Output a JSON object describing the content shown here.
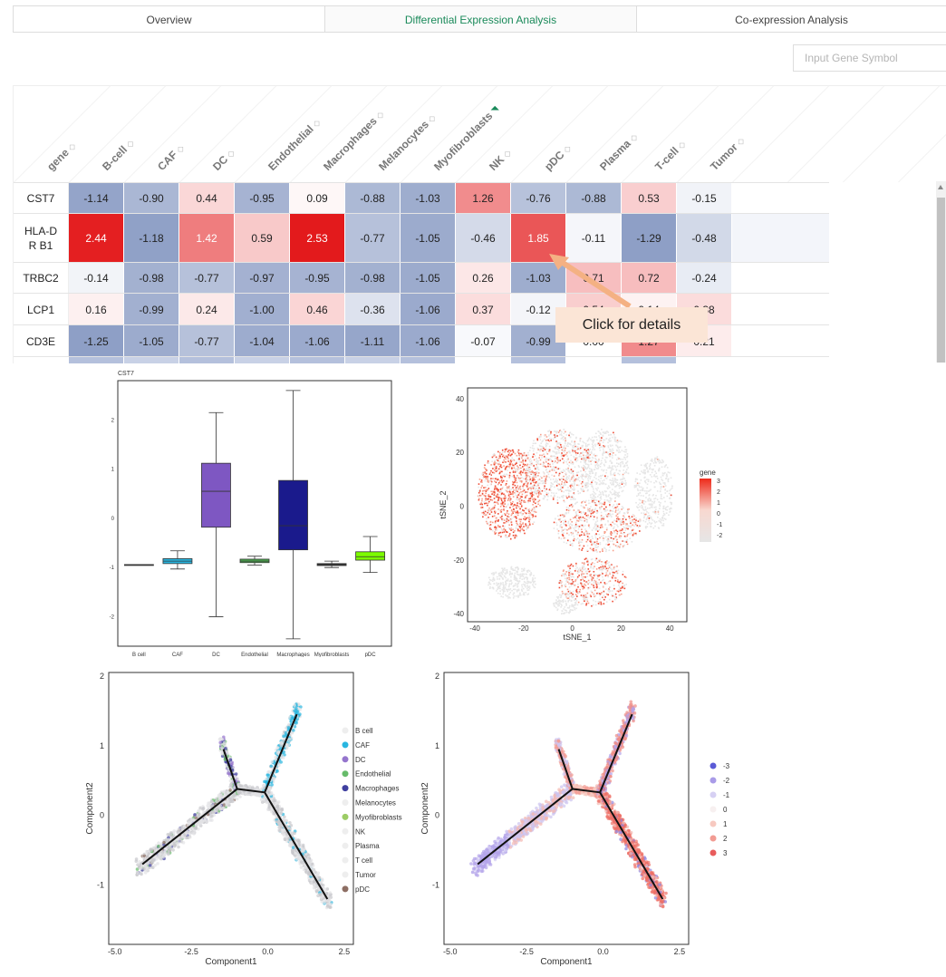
{
  "tabs": [
    {
      "label": "Overview",
      "active": false
    },
    {
      "label": "Differential Expression Analysis",
      "active": true
    },
    {
      "label": "Co-expression Analysis",
      "active": false
    }
  ],
  "search": {
    "placeholder": "Input Gene Symbol"
  },
  "table": {
    "columns": [
      "gene",
      "B-cell",
      "CAF",
      "DC",
      "Endothelial",
      "Macrophages",
      "Melanocytes",
      "Myofibroblasts",
      "NK",
      "pDC",
      "Plasma",
      "T-cell",
      "Tumor"
    ],
    "rows": [
      {
        "gene": "CST7",
        "values": [
          "-1.14",
          "-0.90",
          "0.44",
          "-0.95",
          "0.09",
          "-0.88",
          "-1.03",
          "1.26",
          "-0.76",
          "-0.88",
          "0.53",
          "-0.15"
        ]
      },
      {
        "gene": "HLA-DR B1",
        "values": [
          "2.44",
          "-1.18",
          "1.42",
          "0.59",
          "2.53",
          "-0.77",
          "-1.05",
          "-0.46",
          "1.85",
          "-0.11",
          "-1.29",
          "-0.48"
        ]
      },
      {
        "gene": "TRBC2",
        "values": [
          "-0.14",
          "-0.98",
          "-0.77",
          "-0.97",
          "-0.95",
          "-0.98",
          "-1.05",
          "0.26",
          "-1.03",
          "0.71",
          "0.72",
          "-0.24"
        ]
      },
      {
        "gene": "LCP1",
        "values": [
          "0.16",
          "-0.99",
          "0.24",
          "-1.00",
          "0.46",
          "-0.36",
          "-1.06",
          "0.37",
          "-0.12",
          "0.54",
          "0.14",
          "0.38"
        ]
      },
      {
        "gene": "CD3E",
        "values": [
          "-1.25",
          "-1.05",
          "-0.77",
          "-1.04",
          "-1.06",
          "-1.11",
          "-1.06",
          "-0.07",
          "-0.99",
          "0.00",
          "1.27",
          "0.21"
        ]
      }
    ]
  },
  "callout": {
    "text": "Click for details"
  },
  "colors": {
    "negative": "#8e9fc6",
    "positive": "#e31a1c",
    "accent": "#1a8a5a",
    "callout_bg": "#fbe5d6",
    "arrow": "#f4b183"
  },
  "chart_data": [
    {
      "type": "boxplot",
      "title": "CST7",
      "categories": [
        "B cell",
        "CAF",
        "DC",
        "Endothelial",
        "Macrophages",
        "Myofibroblasts",
        "pDC"
      ],
      "colors": [
        "#444444",
        "#29b6e0",
        "#7e57c2",
        "#4caf50",
        "#1a1a8c",
        "#333333",
        "#7cfc00"
      ],
      "boxes": [
        {
          "min": -0.94,
          "q1": -0.94,
          "median": -0.94,
          "q3": -0.94,
          "max": -0.94
        },
        {
          "min": -1.03,
          "q1": -0.92,
          "median": -0.87,
          "q3": -0.82,
          "max": -0.66
        },
        {
          "min": -2.0,
          "q1": -0.18,
          "median": 0.55,
          "q3": 1.12,
          "max": 2.15
        },
        {
          "min": -0.95,
          "q1": -0.9,
          "median": -0.87,
          "q3": -0.83,
          "max": -0.77
        },
        {
          "min": -2.45,
          "q1": -0.64,
          "median": -0.15,
          "q3": 0.77,
          "max": 2.6
        },
        {
          "min": -1.0,
          "q1": -0.96,
          "median": -0.94,
          "q3": -0.92,
          "max": -0.87
        },
        {
          "min": -1.1,
          "q1": -0.85,
          "median": -0.78,
          "q3": -0.68,
          "max": -0.37
        }
      ],
      "yticks": [
        -2,
        -1,
        0,
        1,
        2
      ],
      "ylim": [
        -2.6,
        2.8
      ]
    },
    {
      "type": "scatter",
      "xlabel": "tSNE_1",
      "ylabel": "tSNE_2",
      "xlim": [
        -43,
        47
      ],
      "ylim": [
        -43,
        44
      ],
      "xticks": [
        -40,
        -20,
        0,
        20,
        40
      ],
      "yticks": [
        -40,
        -20,
        0,
        20,
        40
      ],
      "legend": {
        "title": "gene",
        "ticks": [
          "3",
          "2",
          "1",
          "0",
          "-1",
          "-2"
        ]
      }
    },
    {
      "type": "scatter",
      "xlabel": "Component1",
      "ylabel": "Component2",
      "xlim": [
        -5.2,
        2.8
      ],
      "ylim": [
        -1.85,
        2.05
      ],
      "xticks": [
        -5.0,
        -2.5,
        0.0,
        2.5
      ],
      "yticks": [
        -1,
        0,
        1,
        2
      ],
      "legend": [
        {
          "name": "B cell",
          "color": "#eeeeee"
        },
        {
          "name": "CAF",
          "color": "#29b6e0"
        },
        {
          "name": "DC",
          "color": "#9575cd"
        },
        {
          "name": "Endothelial",
          "color": "#66bb6a"
        },
        {
          "name": "Macrophages",
          "color": "#3f3f9f"
        },
        {
          "name": "Melanocytes",
          "color": "#eeeeee"
        },
        {
          "name": "Myofibroblasts",
          "color": "#9ccc65"
        },
        {
          "name": "NK",
          "color": "#eeeeee"
        },
        {
          "name": "Plasma",
          "color": "#eeeeee"
        },
        {
          "name": "T cell",
          "color": "#eeeeee"
        },
        {
          "name": "Tumor",
          "color": "#eeeeee"
        },
        {
          "name": "pDC",
          "color": "#8d6e63"
        }
      ]
    },
    {
      "type": "scatter",
      "xlabel": "Component1",
      "ylabel": "Component2",
      "xlim": [
        -5.2,
        2.8
      ],
      "ylim": [
        -1.85,
        2.05
      ],
      "xticks": [
        -5.0,
        -2.5,
        0.0,
        2.5
      ],
      "yticks": [
        -1,
        0,
        1,
        2
      ],
      "legend": [
        {
          "name": "-3",
          "color": "#5b5bd6"
        },
        {
          "name": "-2",
          "color": "#a99be8"
        },
        {
          "name": "-1",
          "color": "#d6d0f3"
        },
        {
          "name": "0",
          "color": "#f7f0f0"
        },
        {
          "name": "1",
          "color": "#f7c9c0"
        },
        {
          "name": "2",
          "color": "#f29b93"
        },
        {
          "name": "3",
          "color": "#e85c5c"
        }
      ]
    }
  ]
}
